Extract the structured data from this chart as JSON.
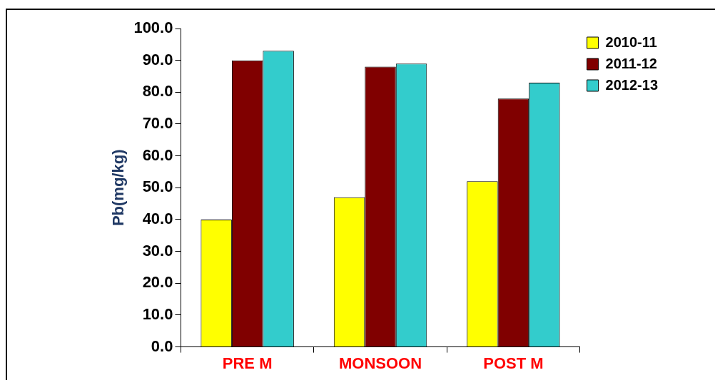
{
  "chart_data": {
    "type": "bar",
    "ylabel": "Pb(mg/kg)",
    "categories": [
      "PRE M",
      "MONSOON",
      "POST M"
    ],
    "series": [
      {
        "name": "2010-11",
        "color": "#ffff00",
        "values": [
          40,
          47,
          52
        ]
      },
      {
        "name": "2011-12",
        "color": "#800000",
        "values": [
          90,
          88,
          78
        ]
      },
      {
        "name": "2012-13",
        "color": "#33cccc",
        "values": [
          93,
          89,
          83
        ]
      }
    ],
    "ylim": [
      0,
      100
    ],
    "yticks": [
      {
        "value": 0,
        "label": "0.0"
      },
      {
        "value": 10,
        "label": "10.0"
      },
      {
        "value": 20,
        "label": "20.0"
      },
      {
        "value": 30,
        "label": "30.0"
      },
      {
        "value": 40,
        "label": "40.0"
      },
      {
        "value": 50,
        "label": "50.0"
      },
      {
        "value": 60,
        "label": "60.0"
      },
      {
        "value": 70,
        "label": "70.0"
      },
      {
        "value": 80,
        "label": "80.0"
      },
      {
        "value": 90,
        "label": "90.0"
      },
      {
        "value": 100,
        "label": "100.0"
      }
    ],
    "grid": false,
    "legend": "top right"
  }
}
